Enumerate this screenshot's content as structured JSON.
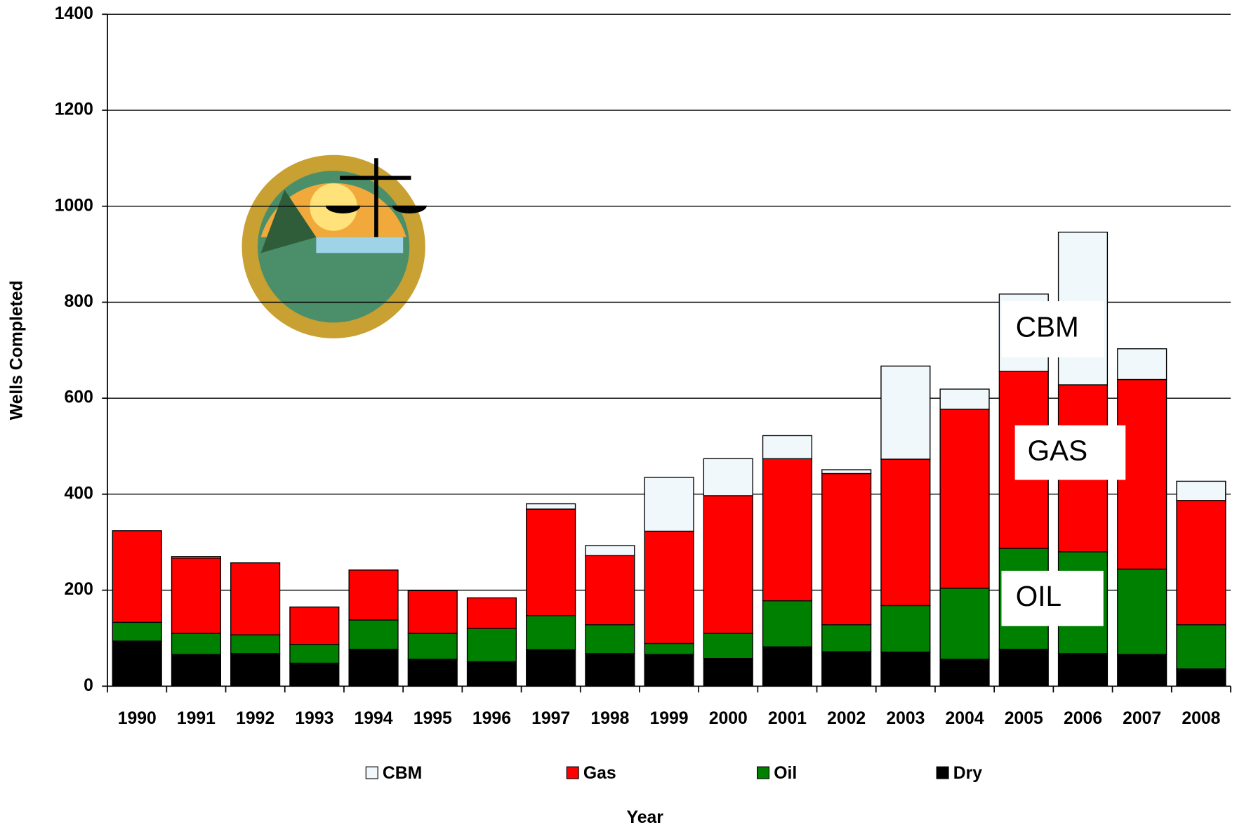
{
  "chart_data": {
    "type": "stacked_bar",
    "y_label": "Wells Completed",
    "x_label": "Year",
    "categories": [
      "1990",
      "1991",
      "1992",
      "1993",
      "1994",
      "1995",
      "1996",
      "1997",
      "1998",
      "1999",
      "2000",
      "2001",
      "2002",
      "2003",
      "2004",
      "2005",
      "2006",
      "2007",
      "2008"
    ],
    "series": [
      {
        "name": "Dry",
        "color": "#000000",
        "values": [
          94,
          66,
          68,
          48,
          77,
          56,
          51,
          76,
          68,
          66,
          58,
          82,
          72,
          71,
          56,
          77,
          68,
          66,
          36
        ]
      },
      {
        "name": "Oil",
        "color": "#008000",
        "values": [
          39,
          44,
          39,
          39,
          61,
          54,
          69,
          71,
          60,
          23,
          52,
          96,
          56,
          97,
          148,
          210,
          212,
          178,
          92
        ]
      },
      {
        "name": "Gas",
        "color": "#ff0000",
        "values": [
          191,
          157,
          150,
          78,
          104,
          89,
          64,
          222,
          144,
          234,
          287,
          296,
          315,
          305,
          373,
          369,
          348,
          395,
          259
        ]
      },
      {
        "name": "CBM",
        "color": "#f0f8fb",
        "values": [
          0,
          3,
          0,
          0,
          0,
          0,
          0,
          11,
          21,
          112,
          77,
          48,
          8,
          194,
          42,
          161,
          318,
          64,
          40
        ]
      }
    ],
    "ylim": [
      0,
      1400
    ],
    "yticks": [
      0,
      200,
      400,
      600,
      800,
      1000,
      1200,
      1400
    ],
    "grid": true,
    "legend": "bottom",
    "legend_order": [
      "CBM",
      "Gas",
      "Oil",
      "Dry"
    ],
    "annotations": [
      "CBM",
      "GAS",
      "OIL"
    ]
  }
}
